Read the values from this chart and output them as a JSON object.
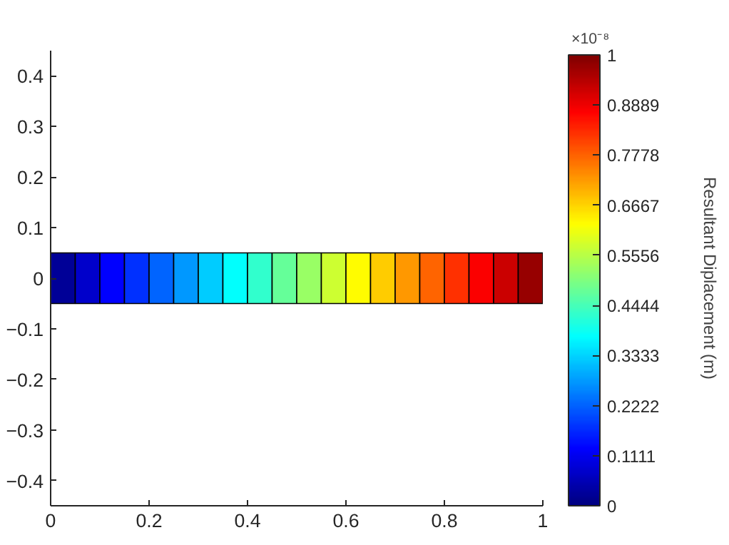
{
  "chart_data": {
    "type": "scatter",
    "marker": "square",
    "x": [
      0.025,
      0.075,
      0.125,
      0.175,
      0.225,
      0.275,
      0.325,
      0.375,
      0.425,
      0.475,
      0.525,
      0.575,
      0.625,
      0.675,
      0.725,
      0.775,
      0.825,
      0.875,
      0.925,
      0.975
    ],
    "values": [
      0,
      0,
      0,
      0,
      0,
      0,
      0,
      0,
      0,
      0,
      0,
      0,
      0,
      0,
      0,
      0,
      0,
      0,
      0,
      0
    ],
    "cvalues": [
      0.025,
      0.075,
      0.125,
      0.175,
      0.225,
      0.275,
      0.325,
      0.375,
      0.425,
      0.475,
      0.525,
      0.575,
      0.625,
      0.675,
      0.725,
      0.775,
      0.825,
      0.875,
      0.925,
      0.975
    ],
    "xlim": [
      0,
      1
    ],
    "xticks": [
      0,
      0.2,
      0.4,
      0.6,
      0.8,
      1
    ],
    "ylim": [
      -0.45,
      0.45
    ],
    "yticks": [
      -0.4,
      -0.3,
      -0.2,
      -0.1,
      0,
      0.1,
      0.2,
      0.3,
      0.4
    ],
    "clim": [
      0,
      1
    ],
    "cticks": [
      0,
      0.1111,
      0.2222,
      0.3333,
      0.4444,
      0.5556,
      0.6667,
      0.7778,
      0.8889,
      1
    ],
    "clabel": "Resultant Diplacement (m)",
    "annotations": [
      "×10⁻⁸"
    ]
  }
}
